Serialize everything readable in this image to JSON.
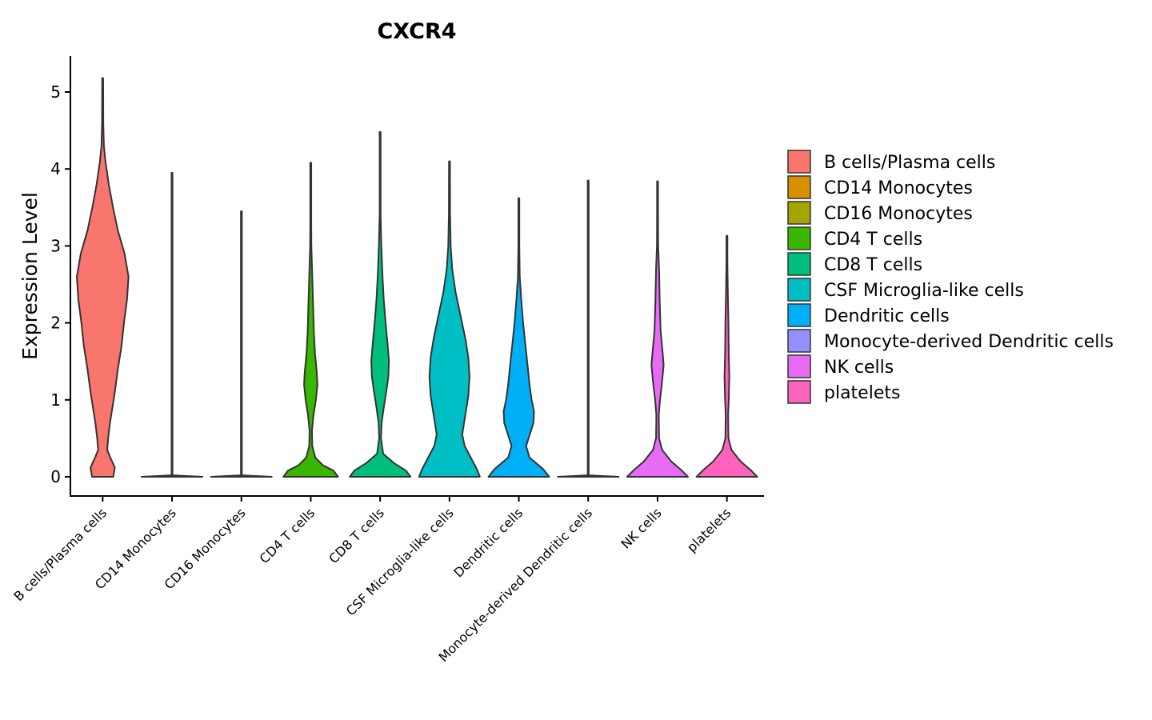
{
  "chart_data": {
    "type": "violin",
    "title": "CXCR4",
    "xlabel": "",
    "ylabel": "Expression Level",
    "ylim": [
      -0.25,
      5.45
    ],
    "yticks": [
      0,
      1,
      2,
      3,
      4,
      5
    ],
    "grid": false,
    "legend_position": "right",
    "categories": [
      "B cells/Plasma cells",
      "CD14 Monocytes",
      "CD16 Monocytes",
      "CD4 T cells",
      "CD8 T cells",
      "CSF Microglia-like cells",
      "Dendritic cells",
      "Monocyte-derived Dendritic cells",
      "NK cells",
      "platelets"
    ],
    "colors": [
      "#F8766D",
      "#D89000",
      "#A3A500",
      "#39B600",
      "#00BF7D",
      "#00BFC4",
      "#00B0F6",
      "#9590FF",
      "#E76BF3",
      "#FF62BC"
    ],
    "series": [
      {
        "name": "B cells/Plasma cells",
        "max": 5.18,
        "profile": [
          [
            0,
            0.35
          ],
          [
            0.12,
            0.4
          ],
          [
            0.25,
            0.25
          ],
          [
            0.35,
            0.15
          ],
          [
            0.5,
            0.18
          ],
          [
            0.7,
            0.24
          ],
          [
            0.9,
            0.32
          ],
          [
            1.1,
            0.4
          ],
          [
            1.4,
            0.5
          ],
          [
            1.7,
            0.62
          ],
          [
            2.0,
            0.7
          ],
          [
            2.3,
            0.8
          ],
          [
            2.6,
            0.85
          ],
          [
            2.9,
            0.72
          ],
          [
            3.2,
            0.5
          ],
          [
            3.5,
            0.34
          ],
          [
            3.8,
            0.2
          ],
          [
            4.1,
            0.09
          ],
          [
            4.3,
            0.04
          ],
          [
            4.6,
            0.02
          ],
          [
            5.18,
            0.01
          ]
        ]
      },
      {
        "name": "CD14 Monocytes",
        "max": 3.95,
        "profile": [
          [
            0,
            1.0
          ],
          [
            0.02,
            0.01
          ],
          [
            3.95,
            0.01
          ]
        ]
      },
      {
        "name": "CD16 Monocytes",
        "max": 3.45,
        "profile": [
          [
            0,
            1.0
          ],
          [
            0.02,
            0.01
          ],
          [
            3.45,
            0.01
          ]
        ]
      },
      {
        "name": "CD4 T cells",
        "max": 4.08,
        "profile": [
          [
            0,
            0.9
          ],
          [
            0.08,
            0.75
          ],
          [
            0.15,
            0.4
          ],
          [
            0.25,
            0.15
          ],
          [
            0.4,
            0.05
          ],
          [
            0.6,
            0.04
          ],
          [
            0.8,
            0.09
          ],
          [
            1.0,
            0.17
          ],
          [
            1.2,
            0.22
          ],
          [
            1.35,
            0.2
          ],
          [
            1.6,
            0.14
          ],
          [
            1.9,
            0.1
          ],
          [
            2.2,
            0.08
          ],
          [
            2.6,
            0.05
          ],
          [
            3.0,
            0.02
          ],
          [
            3.3,
            0.01
          ],
          [
            4.08,
            0.01
          ]
        ]
      },
      {
        "name": "CD8 T cells",
        "max": 4.48,
        "profile": [
          [
            0,
            1.0
          ],
          [
            0.08,
            0.85
          ],
          [
            0.18,
            0.45
          ],
          [
            0.3,
            0.1
          ],
          [
            0.5,
            0.03
          ],
          [
            0.7,
            0.05
          ],
          [
            0.9,
            0.12
          ],
          [
            1.1,
            0.2
          ],
          [
            1.3,
            0.27
          ],
          [
            1.5,
            0.29
          ],
          [
            1.7,
            0.25
          ],
          [
            2.0,
            0.18
          ],
          [
            2.3,
            0.12
          ],
          [
            2.6,
            0.08
          ],
          [
            3.0,
            0.04
          ],
          [
            3.4,
            0.01
          ],
          [
            4.48,
            0.01
          ]
        ]
      },
      {
        "name": "CSF Microglia-like cells",
        "max": 4.1,
        "profile": [
          [
            0,
            1.0
          ],
          [
            0.1,
            0.9
          ],
          [
            0.25,
            0.7
          ],
          [
            0.4,
            0.5
          ],
          [
            0.55,
            0.42
          ],
          [
            0.8,
            0.52
          ],
          [
            1.05,
            0.62
          ],
          [
            1.3,
            0.66
          ],
          [
            1.55,
            0.62
          ],
          [
            1.8,
            0.52
          ],
          [
            2.1,
            0.36
          ],
          [
            2.4,
            0.2
          ],
          [
            2.7,
            0.09
          ],
          [
            3.0,
            0.04
          ],
          [
            3.4,
            0.02
          ],
          [
            4.1,
            0.01
          ]
        ]
      },
      {
        "name": "Dendritic cells",
        "max": 3.62,
        "profile": [
          [
            0,
            1.0
          ],
          [
            0.1,
            0.8
          ],
          [
            0.25,
            0.35
          ],
          [
            0.4,
            0.24
          ],
          [
            0.55,
            0.36
          ],
          [
            0.7,
            0.48
          ],
          [
            0.85,
            0.5
          ],
          [
            1.0,
            0.42
          ],
          [
            1.2,
            0.35
          ],
          [
            1.4,
            0.3
          ],
          [
            1.7,
            0.22
          ],
          [
            2.0,
            0.14
          ],
          [
            2.3,
            0.08
          ],
          [
            2.6,
            0.03
          ],
          [
            3.0,
            0.01
          ],
          [
            3.62,
            0.01
          ]
        ]
      },
      {
        "name": "Monocyte-derived Dendritic cells",
        "max": 3.85,
        "profile": [
          [
            0,
            1.0
          ],
          [
            0.02,
            0.01
          ],
          [
            3.85,
            0.01
          ]
        ]
      },
      {
        "name": "NK cells",
        "max": 3.84,
        "profile": [
          [
            0,
            1.0
          ],
          [
            0.08,
            0.8
          ],
          [
            0.2,
            0.45
          ],
          [
            0.35,
            0.15
          ],
          [
            0.5,
            0.05
          ],
          [
            0.8,
            0.04
          ],
          [
            1.0,
            0.08
          ],
          [
            1.2,
            0.14
          ],
          [
            1.45,
            0.2
          ],
          [
            1.6,
            0.17
          ],
          [
            1.9,
            0.1
          ],
          [
            2.3,
            0.07
          ],
          [
            2.7,
            0.05
          ],
          [
            3.0,
            0.02
          ],
          [
            3.4,
            0.01
          ],
          [
            3.84,
            0.01
          ]
        ]
      },
      {
        "name": "platelets",
        "max": 3.13,
        "profile": [
          [
            0,
            1.0
          ],
          [
            0.08,
            0.8
          ],
          [
            0.2,
            0.45
          ],
          [
            0.35,
            0.15
          ],
          [
            0.5,
            0.05
          ],
          [
            0.8,
            0.04
          ],
          [
            1.0,
            0.06
          ],
          [
            1.3,
            0.08
          ],
          [
            1.6,
            0.06
          ],
          [
            2.0,
            0.05
          ],
          [
            2.4,
            0.03
          ],
          [
            2.8,
            0.01
          ],
          [
            3.13,
            0.01
          ]
        ]
      }
    ]
  }
}
